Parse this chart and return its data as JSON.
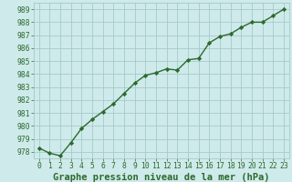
{
  "x": [
    0,
    1,
    2,
    3,
    4,
    5,
    6,
    7,
    8,
    9,
    10,
    11,
    12,
    13,
    14,
    15,
    16,
    17,
    18,
    19,
    20,
    21,
    22,
    23
  ],
  "y": [
    978.3,
    977.9,
    977.7,
    978.7,
    979.8,
    980.5,
    981.1,
    981.7,
    982.5,
    983.3,
    983.9,
    984.1,
    984.4,
    984.3,
    985.1,
    985.2,
    986.4,
    986.9,
    987.1,
    987.6,
    988.0,
    988.0,
    988.5,
    989.0
  ],
  "line_color": "#2d6a2d",
  "marker": "D",
  "marker_size": 2.2,
  "bg_color": "#ceeaea",
  "grid_color": "#a0c4c4",
  "xlabel": "Graphe pression niveau de la mer (hPa)",
  "xlabel_fontsize": 7.5,
  "xlabel_bold": true,
  "ylim": [
    977.5,
    989.5
  ],
  "xlim": [
    -0.5,
    23.5
  ],
  "yticks": [
    978,
    979,
    980,
    981,
    982,
    983,
    984,
    985,
    986,
    987,
    988,
    989
  ],
  "xticks": [
    0,
    1,
    2,
    3,
    4,
    5,
    6,
    7,
    8,
    9,
    10,
    11,
    12,
    13,
    14,
    15,
    16,
    17,
    18,
    19,
    20,
    21,
    22,
    23
  ],
  "tick_fontsize": 5.8,
  "line_width": 1.0
}
